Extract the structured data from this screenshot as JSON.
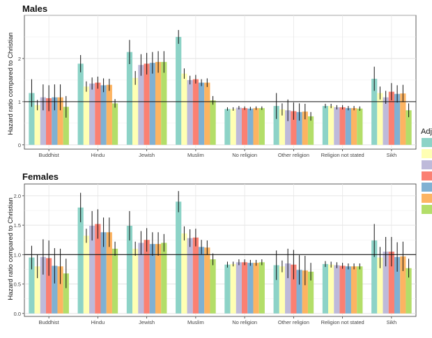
{
  "legend": {
    "title_visible": "Adj"
  },
  "panels": [
    {
      "title": "Males",
      "ylabel": "Hazard ratio compared to Christian"
    },
    {
      "title": "Females",
      "ylabel": "Hazard ratio compared to Christian"
    }
  ],
  "chart_data": [
    {
      "type": "bar",
      "title": "Males",
      "xlabel": "",
      "ylabel": "Hazard ratio compared to Christian",
      "ylim": [
        -0.1,
        3.0
      ],
      "yticks": [
        0,
        1,
        2
      ],
      "reference_line": 1,
      "grid": true,
      "legend_position": "right",
      "series_colors": [
        "#8dd3c7",
        "#ffffb3",
        "#bebada",
        "#fb8072",
        "#80b1d3",
        "#fdb462",
        "#b3de69"
      ],
      "categories": [
        "Buddhist",
        "Hindu",
        "Jewish",
        "Muslim",
        "No religion",
        "Other religion",
        "Religion not stated",
        "Sikh"
      ],
      "values": [
        [
          1.2,
          0.92,
          1.1,
          1.08,
          1.1,
          1.1,
          0.88
        ],
        [
          1.88,
          1.35,
          1.42,
          1.44,
          1.38,
          1.39,
          0.96
        ],
        [
          2.15,
          1.55,
          1.85,
          1.88,
          1.9,
          1.92,
          1.92
        ],
        [
          2.5,
          1.65,
          1.5,
          1.52,
          1.44,
          1.44,
          1.03
        ],
        [
          0.83,
          0.83,
          0.86,
          0.85,
          0.84,
          0.85,
          0.85
        ],
        [
          0.9,
          0.82,
          0.8,
          0.78,
          0.76,
          0.77,
          0.66
        ],
        [
          0.9,
          0.9,
          0.87,
          0.87,
          0.85,
          0.85,
          0.84
        ],
        [
          1.53,
          1.2,
          1.1,
          1.23,
          1.18,
          1.19,
          0.8
        ]
      ],
      "errors": [
        [
          0.32,
          0.12,
          0.3,
          0.3,
          0.3,
          0.3,
          0.25
        ],
        [
          0.2,
          0.12,
          0.14,
          0.14,
          0.16,
          0.14,
          0.1
        ],
        [
          0.28,
          0.16,
          0.25,
          0.25,
          0.25,
          0.25,
          0.25
        ],
        [
          0.16,
          0.12,
          0.1,
          0.1,
          0.08,
          0.1,
          0.1
        ],
        [
          0.04,
          0.04,
          0.04,
          0.04,
          0.04,
          0.04,
          0.04
        ],
        [
          0.3,
          0.14,
          0.25,
          0.2,
          0.2,
          0.18,
          0.1
        ],
        [
          0.05,
          0.05,
          0.05,
          0.05,
          0.05,
          0.05,
          0.05
        ],
        [
          0.28,
          0.15,
          0.15,
          0.2,
          0.2,
          0.2,
          0.16
        ]
      ]
    },
    {
      "type": "bar",
      "title": "Females",
      "xlabel": "",
      "ylabel": "Hazard ratio compared to Christian",
      "ylim": [
        -0.05,
        2.2
      ],
      "yticks": [
        0.0,
        0.5,
        1.0,
        1.5,
        2.0
      ],
      "tick_labels": [
        "0.0",
        "0.5",
        "1.0",
        "1.5",
        "2.0"
      ],
      "reference_line": 1,
      "grid": true,
      "legend_position": "right",
      "series_colors": [
        "#8dd3c7",
        "#ffffb3",
        "#bebada",
        "#fb8072",
        "#80b1d3",
        "#fdb462",
        "#b3de69"
      ],
      "categories": [
        "Buddhist",
        "Hindu",
        "Jewish",
        "Muslim",
        "No religion",
        "Other religion",
        "Religion not stated",
        "Sikh"
      ],
      "values": [
        [
          0.95,
          0.8,
          0.96,
          0.94,
          0.81,
          0.8,
          0.68
        ],
        [
          1.8,
          1.32,
          1.49,
          1.52,
          1.38,
          1.38,
          1.1
        ],
        [
          1.49,
          1.1,
          1.2,
          1.25,
          1.18,
          1.18,
          1.2
        ],
        [
          1.9,
          1.36,
          1.28,
          1.29,
          1.13,
          1.12,
          0.92
        ],
        [
          0.83,
          0.84,
          0.87,
          0.87,
          0.86,
          0.86,
          0.87
        ],
        [
          0.82,
          0.8,
          0.85,
          0.83,
          0.74,
          0.73,
          0.71
        ],
        [
          0.84,
          0.83,
          0.82,
          0.81,
          0.8,
          0.8,
          0.8
        ],
        [
          1.24,
          0.95,
          1.05,
          1.05,
          0.96,
          0.97,
          0.77
        ]
      ],
      "errors": [
        [
          0.2,
          0.2,
          0.3,
          0.3,
          0.3,
          0.3,
          0.25
        ],
        [
          0.25,
          0.12,
          0.25,
          0.25,
          0.25,
          0.25,
          0.12
        ],
        [
          0.25,
          0.12,
          0.2,
          0.2,
          0.2,
          0.2,
          0.15
        ],
        [
          0.18,
          0.12,
          0.15,
          0.15,
          0.12,
          0.12,
          0.1
        ],
        [
          0.05,
          0.04,
          0.05,
          0.05,
          0.05,
          0.05,
          0.05
        ],
        [
          0.25,
          0.1,
          0.25,
          0.25,
          0.25,
          0.25,
          0.15
        ],
        [
          0.05,
          0.05,
          0.05,
          0.05,
          0.05,
          0.05,
          0.05
        ],
        [
          0.28,
          0.18,
          0.25,
          0.25,
          0.25,
          0.25,
          0.16
        ]
      ]
    }
  ]
}
